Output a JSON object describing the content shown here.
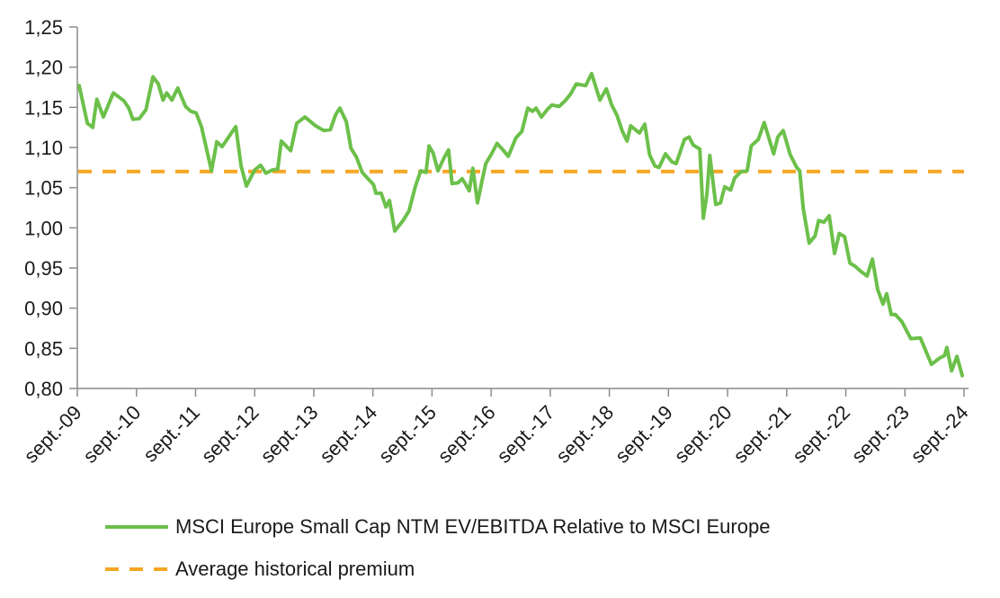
{
  "chart_data": {
    "type": "line",
    "title": "",
    "xlabel": "",
    "ylabel": "",
    "ylim": [
      0.8,
      1.25
    ],
    "yticks": [
      "1,25",
      "1,20",
      "1,15",
      "1,10",
      "1,05",
      "1,00",
      "0,95",
      "0,90",
      "0,85",
      "0,80"
    ],
    "ytick_values": [
      1.25,
      1.2,
      1.15,
      1.1,
      1.05,
      1.0,
      0.95,
      0.9,
      0.85,
      0.8
    ],
    "xlim_years_from_start": [
      0,
      15
    ],
    "xticks": [
      "sept.-09",
      "sept.-10",
      "sept.-11",
      "sept.-12",
      "sept.-13",
      "sept.-14",
      "sept.-15",
      "sept.-16",
      "sept.-17",
      "sept.-18",
      "sept.-19",
      "sept.-20",
      "sept.-21",
      "sept.-22",
      "sept.-23",
      "sept.-24"
    ],
    "grid": false,
    "legend_position": "bottom",
    "series": [
      {
        "name": "MSCI Europe Small Cap NTM EV/EBITDA Relative to MSCI Europe",
        "color": "#6cc04a",
        "style": "solid",
        "x_years_from_sept_09": [
          0.03,
          0.17,
          0.26,
          0.33,
          0.44,
          0.61,
          0.79,
          0.87,
          0.94,
          1.05,
          1.16,
          1.28,
          1.37,
          1.45,
          1.51,
          1.6,
          1.7,
          1.83,
          1.92,
          2.01,
          2.1,
          2.27,
          2.36,
          2.45,
          2.68,
          2.77,
          2.86,
          3.0,
          3.1,
          3.19,
          3.3,
          3.39,
          3.45,
          3.61,
          3.71,
          3.85,
          4.03,
          4.17,
          4.28,
          4.37,
          4.44,
          4.55,
          4.63,
          4.72,
          4.82,
          4.93,
          5.01,
          5.05,
          5.14,
          5.22,
          5.28,
          5.37,
          5.51,
          5.61,
          5.72,
          5.81,
          5.9,
          5.95,
          6.02,
          6.1,
          6.21,
          6.28,
          6.34,
          6.44,
          6.51,
          6.57,
          6.63,
          6.69,
          6.77,
          6.85,
          6.91,
          7.0,
          7.1,
          7.2,
          7.29,
          7.42,
          7.52,
          7.62,
          7.7,
          7.76,
          7.85,
          7.96,
          8.03,
          8.15,
          8.25,
          8.34,
          8.44,
          8.6,
          8.7,
          8.84,
          8.95,
          9.04,
          9.13,
          9.22,
          9.3,
          9.36,
          9.51,
          9.6,
          9.68,
          9.77,
          9.84,
          9.95,
          10.06,
          10.13,
          10.27,
          10.35,
          10.42,
          10.53,
          10.59,
          10.65,
          10.7,
          10.8,
          10.88,
          10.95,
          11.05,
          11.12,
          11.23,
          11.33,
          11.4,
          11.52,
          11.62,
          11.78,
          11.85,
          11.94,
          12.06,
          12.17,
          12.22,
          12.28,
          12.38,
          12.48,
          12.54,
          12.63,
          12.72,
          12.81,
          12.89,
          12.98,
          13.07,
          13.16,
          13.25,
          13.36,
          13.45,
          13.54,
          13.63,
          13.69,
          13.77,
          13.84,
          13.95,
          14.1,
          14.26,
          14.45,
          14.59,
          14.67,
          14.71,
          14.79,
          14.88,
          14.97
        ],
        "values": [
          1.177,
          1.13,
          1.125,
          1.16,
          1.138,
          1.168,
          1.158,
          1.149,
          1.135,
          1.136,
          1.147,
          1.188,
          1.179,
          1.159,
          1.168,
          1.159,
          1.174,
          1.151,
          1.145,
          1.143,
          1.126,
          1.071,
          1.107,
          1.101,
          1.126,
          1.077,
          1.052,
          1.072,
          1.078,
          1.068,
          1.072,
          1.073,
          1.108,
          1.096,
          1.13,
          1.138,
          1.127,
          1.121,
          1.122,
          1.141,
          1.149,
          1.132,
          1.099,
          1.088,
          1.069,
          1.06,
          1.054,
          1.043,
          1.043,
          1.026,
          1.034,
          0.996,
          1.009,
          1.021,
          1.052,
          1.071,
          1.069,
          1.102,
          1.093,
          1.071,
          1.088,
          1.097,
          1.055,
          1.056,
          1.061,
          1.054,
          1.046,
          1.074,
          1.031,
          1.06,
          1.08,
          1.091,
          1.105,
          1.097,
          1.089,
          1.112,
          1.12,
          1.149,
          1.145,
          1.149,
          1.138,
          1.148,
          1.153,
          1.151,
          1.158,
          1.166,
          1.179,
          1.177,
          1.192,
          1.159,
          1.173,
          1.153,
          1.14,
          1.12,
          1.108,
          1.127,
          1.118,
          1.129,
          1.091,
          1.077,
          1.075,
          1.092,
          1.082,
          1.08,
          1.11,
          1.113,
          1.103,
          1.098,
          1.012,
          1.042,
          1.09,
          1.029,
          1.031,
          1.051,
          1.047,
          1.062,
          1.07,
          1.071,
          1.102,
          1.11,
          1.131,
          1.092,
          1.113,
          1.121,
          1.091,
          1.075,
          1.071,
          1.024,
          0.981,
          0.99,
          1.009,
          1.007,
          1.015,
          0.968,
          0.993,
          0.989,
          0.956,
          0.952,
          0.946,
          0.94,
          0.961,
          0.923,
          0.905,
          0.918,
          0.892,
          0.892,
          0.883,
          0.862,
          0.863,
          0.83,
          0.838,
          0.841,
          0.851,
          0.822,
          0.84,
          0.816
        ]
      },
      {
        "name": "Average historical premium",
        "color": "#f5a623",
        "style": "dashed",
        "constant_value": 1.07
      }
    ]
  },
  "legend": {
    "items": [
      {
        "label": "MSCI Europe Small Cap NTM EV/EBITDA Relative to MSCI Europe"
      },
      {
        "label": "Average historical premium"
      }
    ]
  }
}
